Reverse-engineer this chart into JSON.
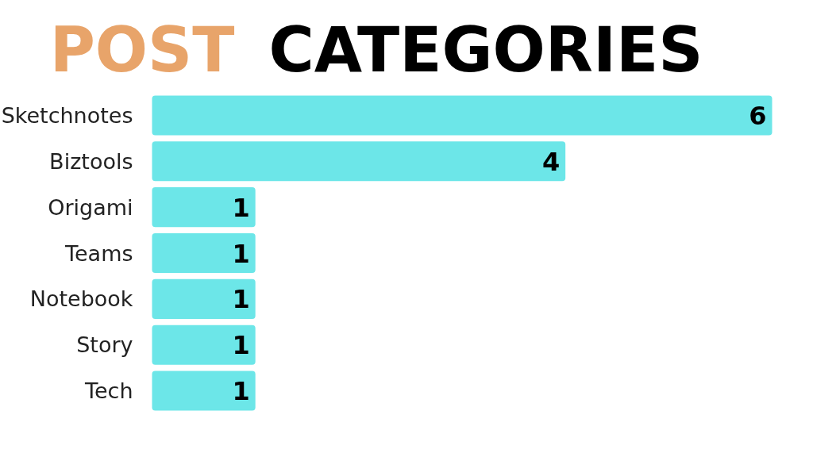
{
  "chart_data": {
    "type": "bar",
    "orientation": "horizontal",
    "title": "POST CATEGORIES",
    "categories": [
      "Sketchnotes",
      "Biztools",
      "Origami",
      "Teams",
      "Notebook",
      "Story",
      "Tech"
    ],
    "values": [
      6,
      4,
      1,
      1,
      1,
      1,
      1
    ],
    "color": "#6ce6e8",
    "xlim": [
      0,
      6
    ],
    "data_labels": true,
    "tick_labels": "y"
  }
}
